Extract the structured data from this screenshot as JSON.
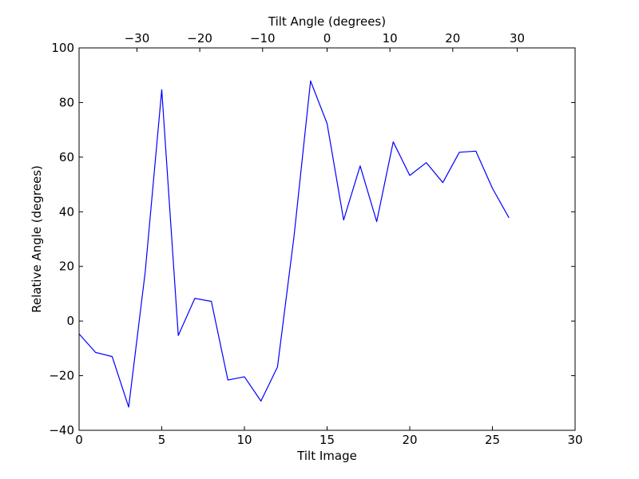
{
  "chart_data": {
    "type": "line",
    "title": "",
    "xlabel": "Tilt Image",
    "ylabel": "Relative Angle (degrees)",
    "top_xlabel": "Tilt Angle (degrees)",
    "xlim": [
      0,
      30
    ],
    "ylim": [
      -40,
      100
    ],
    "xticks": [
      0,
      5,
      10,
      15,
      20,
      25,
      30
    ],
    "yticks": [
      -40,
      -20,
      0,
      20,
      40,
      60,
      80,
      100
    ],
    "top_xticks": [
      {
        "label": "−30",
        "at_tilt_image": 3.5
      },
      {
        "label": "−20",
        "at_tilt_image": 7.3
      },
      {
        "label": "−10",
        "at_tilt_image": 11.1
      },
      {
        "label": "0",
        "at_tilt_image": 15.0
      },
      {
        "label": "10",
        "at_tilt_image": 18.8
      },
      {
        "label": "20",
        "at_tilt_image": 22.6
      },
      {
        "label": "30",
        "at_tilt_image": 26.5
      }
    ],
    "grid": false,
    "line_color": "#0000ff",
    "series": [
      {
        "x": [
          0,
          1,
          2,
          3,
          4,
          5,
          6,
          7,
          8,
          9,
          10,
          11,
          12,
          13,
          14,
          15,
          16,
          17,
          18,
          19,
          20,
          21,
          22,
          23,
          24,
          25,
          26
        ],
        "values": [
          -4.7,
          -11.5,
          -13.0,
          -31.5,
          18.0,
          84.7,
          -5.3,
          8.3,
          7.2,
          -21.6,
          -20.4,
          -29.3,
          -16.8,
          31.0,
          87.9,
          72.3,
          37.0,
          56.8,
          36.4,
          65.6,
          53.3,
          58.0,
          50.7,
          61.8,
          62.2,
          48.6,
          37.8
        ]
      }
    ]
  }
}
